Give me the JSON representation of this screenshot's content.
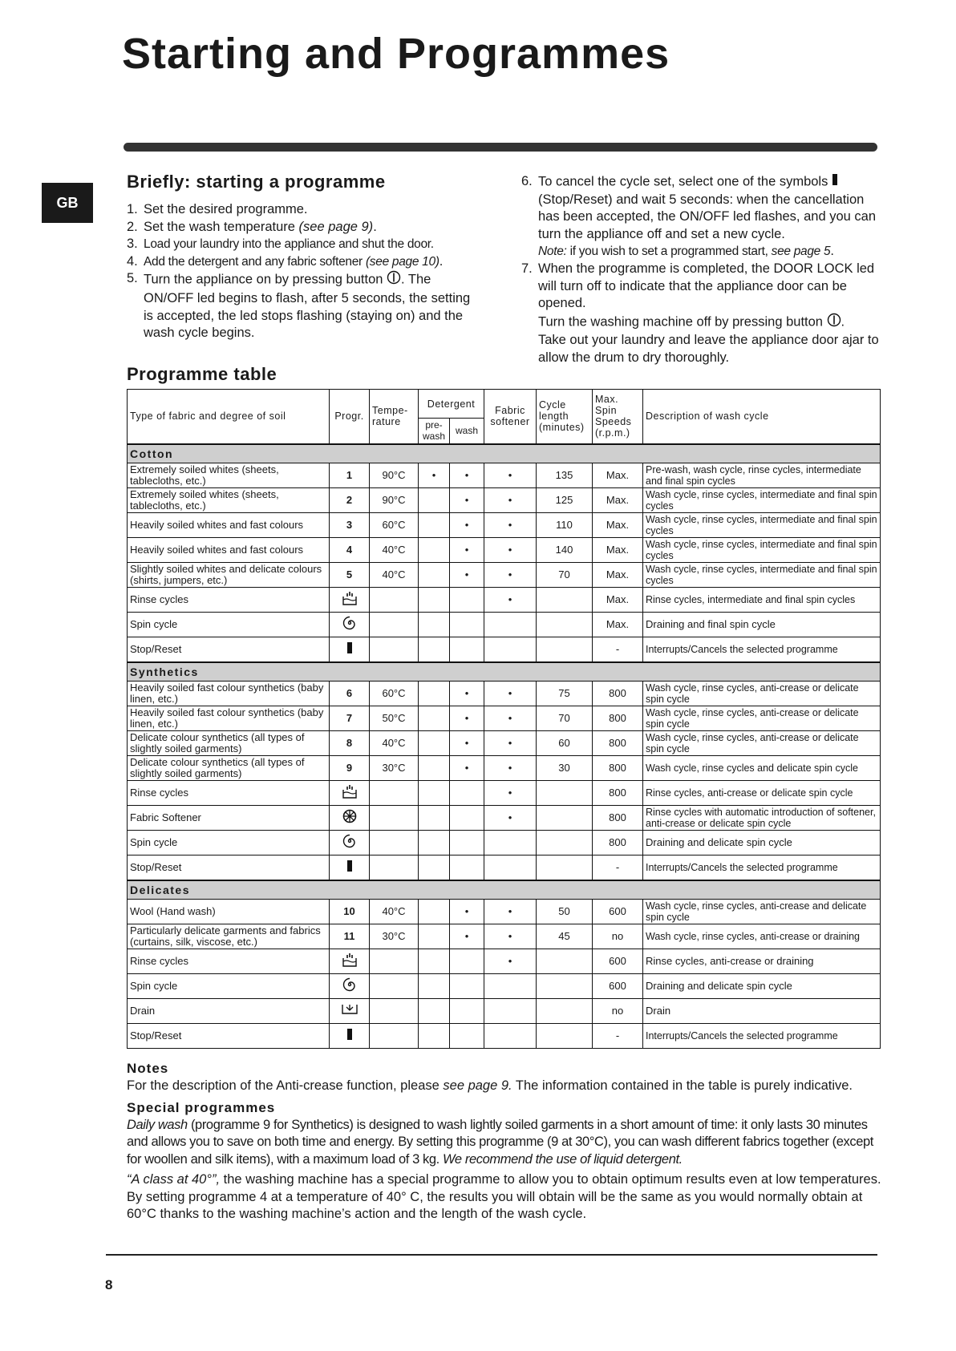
{
  "title": "Starting and Programmes",
  "lang_tab": "GB",
  "briefly": {
    "heading": "Briefly: starting a programme",
    "steps": [
      [
        {
          "t": "1. "
        },
        {
          "t": "Set the desired programme."
        }
      ],
      [
        {
          "t": "2. "
        },
        {
          "t": "Set the wash temperature "
        },
        {
          "t": "(see page 9)",
          "i": true
        },
        {
          "t": "."
        }
      ],
      [
        {
          "t": "3. "
        },
        {
          "t": "Load your laundry into the appliance and shut the door.",
          "n": true
        }
      ],
      [
        {
          "t": "4. "
        },
        {
          "t": "Add the detergent and any fabric softener ",
          "n": true
        },
        {
          "t": "(see page 10)",
          "i": true,
          "n": true
        },
        {
          "t": "."
        }
      ],
      [
        {
          "t": "5. "
        },
        {
          "t": "Turn the appliance on by pressing button "
        },
        {
          "icon": "power"
        },
        {
          "t": ". The ON/OFF led begins to flash, after 5 seconds, the setting is accepted, the led stops flashing (staying on) and the wash cycle begins."
        }
      ]
    ]
  },
  "right_steps": [
    [
      {
        "t": "6. "
      },
      {
        "t": "To cancel the cycle set, select one of the symbols "
      },
      {
        "icon": "stop"
      },
      {
        "t": " (Stop/Reset) and wait 5 seconds: when the cancellation has been accepted, the ON/OFF led flashes, and you can turn the appliance off and set a new cycle."
      },
      {
        "br": true
      },
      {
        "t": "Note:",
        "i": true,
        "n": true
      },
      {
        "t": " if you wish to set a programmed start, ",
        "n": true
      },
      {
        "t": "see page 5",
        "i": true,
        "n": true
      },
      {
        "t": "."
      }
    ],
    [
      {
        "t": "7. "
      },
      {
        "t": "When the programme is completed, the DOOR LOCK led will turn off to indicate that the appliance door can be opened."
      },
      {
        "br": true
      },
      {
        "t": "Turn the washing machine off by pressing button "
      },
      {
        "icon": "power"
      },
      {
        "t": "."
      },
      {
        "br": true
      },
      {
        "t": "Take out your laundry and leave the appliance door ajar to allow the drum to dry thoroughly."
      }
    ]
  ],
  "table": {
    "heading": "Programme table",
    "headers": {
      "fabric": "Type of fabric and degree of soil",
      "progr": "Progr.",
      "temp": "Tempe-rature",
      "detergent": "Detergent",
      "prewash": "pre-wash",
      "wash": "wash",
      "softener": "Fabric softener",
      "length": "Cycle length (minutes)",
      "spin": "Max. Spin Speeds (r.p.m.)",
      "desc": "Description of wash cycle"
    },
    "bullet": "•",
    "sections": [
      {
        "name": "Cotton",
        "rows": [
          [
            "Extremely soiled whites (sheets, tablecloths, etc.)",
            "1",
            "90°C",
            "•",
            "•",
            "•",
            "135",
            "Max.",
            "Pre-wash, wash cycle, rinse cycles, intermediate and final spin cycles"
          ],
          [
            "Extremely soiled whites (sheets, tablecloths, etc.)",
            "2",
            "90°C",
            "",
            "•",
            "•",
            "125",
            "Max.",
            "Wash cycle, rinse cycles, intermediate and final spin cycles"
          ],
          [
            "Heavily soiled whites and fast colours",
            "3",
            "60°C",
            "",
            "•",
            "•",
            "110",
            "Max.",
            "Wash cycle, rinse cycles, intermediate and final spin cycles"
          ],
          [
            "Heavily soiled whites and fast colours",
            "4",
            "40°C",
            "",
            "•",
            "•",
            "140",
            "Max.",
            "Wash cycle, rinse cycles, intermediate and final spin cycles"
          ],
          [
            "Slightly soiled whites and delicate colours (shirts, jumpers, etc.)",
            "5",
            "40°C",
            "",
            "•",
            "•",
            "70",
            "Max.",
            "Wash cycle, rinse cycles, intermediate and final spin cycles"
          ],
          [
            "Rinse cycles",
            "icon:rinse",
            "",
            "",
            "",
            "•",
            "",
            "Max.",
            "Rinse cycles, intermediate and final spin cycles"
          ],
          [
            "Spin cycle",
            "icon:spin",
            "",
            "",
            "",
            "",
            "",
            "Max.",
            "Draining and final spin cycle"
          ],
          [
            "Stop/Reset",
            "icon:stop",
            "",
            "",
            "",
            "",
            "",
            "-",
            "Interrupts/Cancels the selected programme"
          ]
        ]
      },
      {
        "name": "Synthetics",
        "rows": [
          [
            "Heavily soiled fast colour synthetics (baby linen, etc.)",
            "6",
            "60°C",
            "",
            "•",
            "•",
            "75",
            "800",
            "Wash cycle, rinse cycles, anti-crease or delicate spin cycle"
          ],
          [
            "Heavily soiled fast colour synthetics (baby linen, etc.)",
            "7",
            "50°C",
            "",
            "•",
            "•",
            "70",
            "800",
            "Wash cycle, rinse cycles, anti-crease or delicate spin cycle"
          ],
          [
            "Delicate colour synthetics (all types of slightly soiled garments)",
            "8",
            "40°C",
            "",
            "•",
            "•",
            "60",
            "800",
            "Wash cycle, rinse cycles, anti-crease or delicate spin cycle"
          ],
          [
            "Delicate colour synthetics (all types of slightly soiled garments)",
            "9",
            "30°C",
            "",
            "•",
            "•",
            "30",
            "800",
            "Wash cycle, rinse cycles  and delicate spin cycle"
          ],
          [
            "Rinse cycles",
            "icon:rinse",
            "",
            "",
            "",
            "•",
            "",
            "800",
            "Rinse cycles, anti-crease or delicate spin cycle"
          ],
          [
            "Fabric Softener",
            "icon:softener",
            "",
            "",
            "",
            "•",
            "",
            "800",
            "Rinse cycles with automatic introduction of softener, anti-crease or delicate spin cycle"
          ],
          [
            "Spin cycle",
            "icon:spin",
            "",
            "",
            "",
            "",
            "",
            "800",
            "Draining and delicate spin cycle"
          ],
          [
            "Stop/Reset",
            "icon:stop",
            "",
            "",
            "",
            "",
            "",
            "-",
            "Interrupts/Cancels the selected programme"
          ]
        ]
      },
      {
        "name": "Delicates",
        "rows": [
          [
            "Wool (Hand wash)",
            "10",
            "40°C",
            "",
            "•",
            "•",
            "50",
            "600",
            "Wash cycle, rinse cycles, anti-crease and delicate spin cycle"
          ],
          [
            "Particularly delicate garments and fabrics (curtains, silk, viscose, etc.)",
            "11",
            "30°C",
            "",
            "•",
            "•",
            "45",
            "no",
            "Wash cycle, rinse cycles, anti-crease or draining"
          ],
          [
            "Rinse cycles",
            "icon:rinse",
            "",
            "",
            "",
            "•",
            "",
            "600",
            "Rinse cycles, anti-crease or draining"
          ],
          [
            "Spin cycle",
            "icon:spin",
            "",
            "",
            "",
            "",
            "",
            "600",
            "Draining and delicate spin cycle"
          ],
          [
            "Drain",
            "icon:drain",
            "",
            "",
            "",
            "",
            "",
            "no",
            "Drain"
          ],
          [
            "Stop/Reset",
            "icon:stop",
            "",
            "",
            "",
            "",
            "",
            "-",
            "Interrupts/Cancels the selected programme"
          ]
        ]
      }
    ]
  },
  "notes": {
    "heading": "Notes",
    "p1": [
      {
        "t": "For the description of the Anti-crease function, please "
      },
      {
        "t": "see page 9.",
        "i": true
      },
      {
        "t": " The information contained in the table is purely indicative."
      }
    ],
    "special_heading": "Special  programmes",
    "p2": [
      {
        "t": "Daily wash",
        "i": true
      },
      {
        "t": " (programme 9 for Synthetics) is designed to wash lightly soiled garments in a short amount of time: it only lasts 30 minutes and allows you to save on both time and energy. By setting this programme (9 at 30°C), you can wash different fabrics together (except for woollen and silk items), with a maximum load of 3 kg. "
      },
      {
        "t": "We recommend the use of liquid detergent.",
        "i": true
      }
    ],
    "p3": [
      {
        "t": "“A class at 40°”,",
        "i": true
      },
      {
        "t": " the washing machine has a special programme to allow you to obtain optimum results even at low temperatures. By setting programme 4 at a temperature of 40° C, the results you will obtain will be the same as you would normally obtain at 60°C thanks to the washing machine’s action and the length of the wash cycle."
      }
    ]
  },
  "page_number": "8"
}
